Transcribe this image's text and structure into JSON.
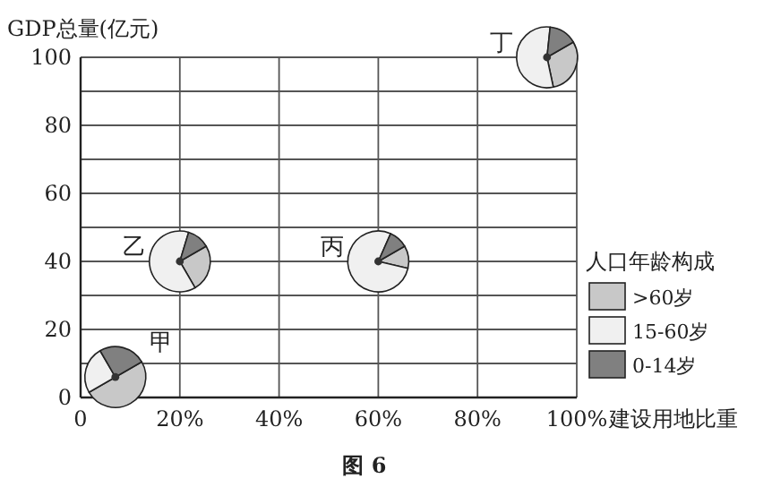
{
  "chart_data": [
    {
      "type": "scatter",
      "title": "图 6",
      "xlabel": "建设用地比重",
      "ylabel": "GDP总量(亿元)",
      "x": [
        94,
        20,
        60,
        7
      ],
      "values": [
        100,
        40,
        40,
        6
      ],
      "marker": "circle",
      "color": "#333333",
      "xlim": [
        0,
        100
      ],
      "ylim": [
        0,
        100
      ],
      "xticks": [
        {
          "value": 0,
          "label": "0"
        },
        {
          "value": 20,
          "label": "20%"
        },
        {
          "value": 40,
          "label": "40%"
        },
        {
          "value": 60,
          "label": "60%"
        },
        {
          "value": 80,
          "label": "80%"
        },
        {
          "value": 100,
          "label": "100%"
        }
      ],
      "yticks": [
        {
          "value": 0,
          "label": "0"
        },
        {
          "value": 10,
          "label": null
        },
        20,
        {
          "value": 30,
          "label": null
        },
        40,
        {
          "value": 50,
          "label": null
        },
        60,
        {
          "value": 70,
          "label": null
        },
        80,
        {
          "value": 90,
          "label": null
        },
        100
      ],
      "grid": true,
      "annotations": [
        {
          "text": "丁",
          "x": 94,
          "y": 100
        },
        {
          "text": "乙",
          "x": 20,
          "y": 40
        },
        {
          "text": "丙",
          "x": 60,
          "y": 40
        },
        {
          "text": "甲",
          "x": 7,
          "y": 6
        }
      ]
    },
    {
      "type": "pie",
      "legend_title": "人口年龄构成",
      "legend": "right",
      "categories": [
        ">60岁",
        "15-60岁",
        "0-14岁"
      ],
      "colors": [
        "#c8c8c8",
        "#f0f0f0",
        "#808080"
      ],
      "series": [
        {
          "values": [
            30,
            55,
            15
          ]
        },
        {
          "values": [
            25,
            63,
            12
          ]
        },
        {
          "values": [
            12,
            78,
            10
          ]
        },
        {
          "values": [
            50,
            25,
            25
          ]
        }
      ]
    }
  ]
}
